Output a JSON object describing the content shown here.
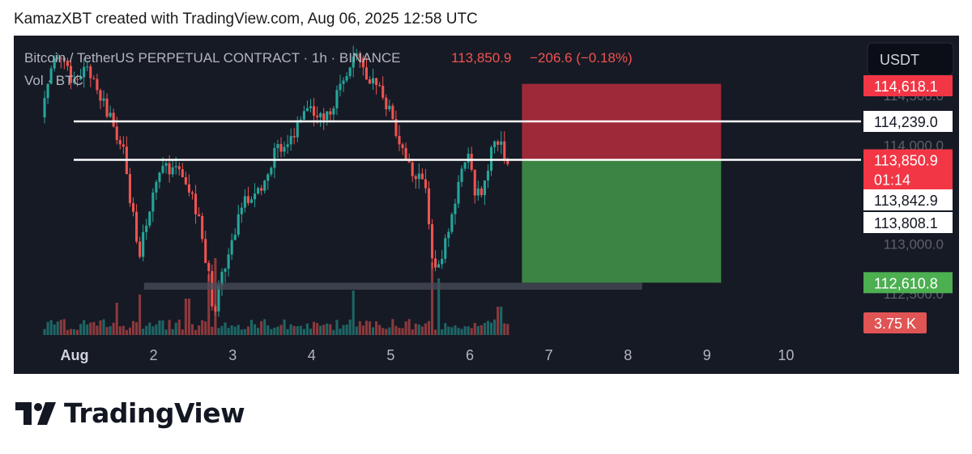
{
  "caption": "KamazXBT created with TradingView.com, Aug 06, 2025 12:58 UTC",
  "brand": {
    "name": "TradingView",
    "logo_icon": "tradingview-logo-icon"
  },
  "colors": {
    "background": "#161a25",
    "up": "#26a69a",
    "down": "#ef5350",
    "stop_zone": "#a52a39",
    "target_zone": "#3d8a45",
    "label_red": "#f23645",
    "label_green": "#4caf50",
    "grey_axis": "#5d606b"
  },
  "chart_data": {
    "type": "candlestick",
    "title": "Bitcoin / TetherUS PERPETUAL CONTRACT · 1h · BINANCE",
    "last_price": "113,850.9",
    "change": "−206.6 (−0.18%)",
    "volume_label": "Vol · BTC",
    "currency_button": "USDT",
    "x_ticks": [
      {
        "label": "Aug",
        "day": 1,
        "bold": true
      },
      {
        "label": "2",
        "day": 2
      },
      {
        "label": "3",
        "day": 3
      },
      {
        "label": "4",
        "day": 4
      },
      {
        "label": "5",
        "day": 5
      },
      {
        "label": "6",
        "day": 6
      },
      {
        "label": "7",
        "day": 7
      },
      {
        "label": "8",
        "day": 8
      },
      {
        "label": "9",
        "day": 9
      },
      {
        "label": "10",
        "day": 10
      }
    ],
    "y_ticks": [
      "114,500.0",
      "114,000.0",
      "113,000.0",
      "112,500.0"
    ],
    "y_tick_values": [
      114500,
      114000,
      113000,
      112500
    ],
    "price_labels": [
      {
        "value": 114618.1,
        "text": "114,618.1",
        "style": "red"
      },
      {
        "value": 114239.0,
        "text": "114,239.0",
        "style": "white"
      },
      {
        "value": 113850.9,
        "text": "113,850.9",
        "sub": "01:14",
        "style": "red"
      },
      {
        "value": 113842.9,
        "text": "113,842.9",
        "style": "white"
      },
      {
        "value": 113808.1,
        "text": "113,808.1",
        "style": "white"
      },
      {
        "value": 112610.8,
        "text": "112,610.8",
        "style": "green"
      }
    ],
    "volume_badge": "3.75 K",
    "horizontal_lines": [
      114239.0,
      113850.9
    ],
    "support_band": {
      "from_day": 1.9,
      "to_day": 8.2,
      "low": 112540,
      "high": 112610
    },
    "position": {
      "entry": 113850.9,
      "stop": 114618.1,
      "target": 112610.8,
      "from_day": 6.68,
      "to_day": 9.2
    },
    "close_path": [
      [
        0.6,
        114280
      ],
      [
        0.8,
        114950
      ],
      [
        1.0,
        114650
      ],
      [
        1.2,
        114750
      ],
      [
        1.45,
        114300
      ],
      [
        1.65,
        113900
      ],
      [
        1.75,
        113300
      ],
      [
        1.85,
        112900
      ],
      [
        2.0,
        113500
      ],
      [
        2.1,
        113800
      ],
      [
        2.25,
        113750
      ],
      [
        2.45,
        113600
      ],
      [
        2.6,
        113200
      ],
      [
        2.7,
        112800
      ],
      [
        2.78,
        112300
      ],
      [
        2.85,
        112550
      ],
      [
        3.0,
        112950
      ],
      [
        3.15,
        113400
      ],
      [
        3.4,
        113600
      ],
      [
        3.55,
        113900
      ],
      [
        3.8,
        114100
      ],
      [
        3.95,
        114400
      ],
      [
        4.1,
        114250
      ],
      [
        4.25,
        114350
      ],
      [
        4.4,
        114650
      ],
      [
        4.55,
        114900
      ],
      [
        4.7,
        114750
      ],
      [
        4.9,
        114500
      ],
      [
        5.1,
        114150
      ],
      [
        5.25,
        113800
      ],
      [
        5.45,
        113600
      ],
      [
        5.55,
        112800
      ],
      [
        5.62,
        112700
      ],
      [
        5.8,
        113300
      ],
      [
        5.9,
        113700
      ],
      [
        6.0,
        113900
      ],
      [
        6.1,
        113500
      ],
      [
        6.2,
        113550
      ],
      [
        6.3,
        113950
      ],
      [
        6.4,
        114050
      ],
      [
        6.5,
        113850
      ]
    ],
    "volume_spikes": [
      {
        "day": 1.55,
        "level": 0.4
      },
      {
        "day": 1.85,
        "level": 0.5
      },
      {
        "day": 2.45,
        "level": 0.45
      },
      {
        "day": 2.72,
        "level": 0.75
      },
      {
        "day": 2.8,
        "level": 0.95
      },
      {
        "day": 4.55,
        "level": 0.55
      },
      {
        "day": 5.55,
        "level": 0.9
      },
      {
        "day": 5.62,
        "level": 0.7
      },
      {
        "day": 6.4,
        "level": 0.35
      }
    ]
  }
}
